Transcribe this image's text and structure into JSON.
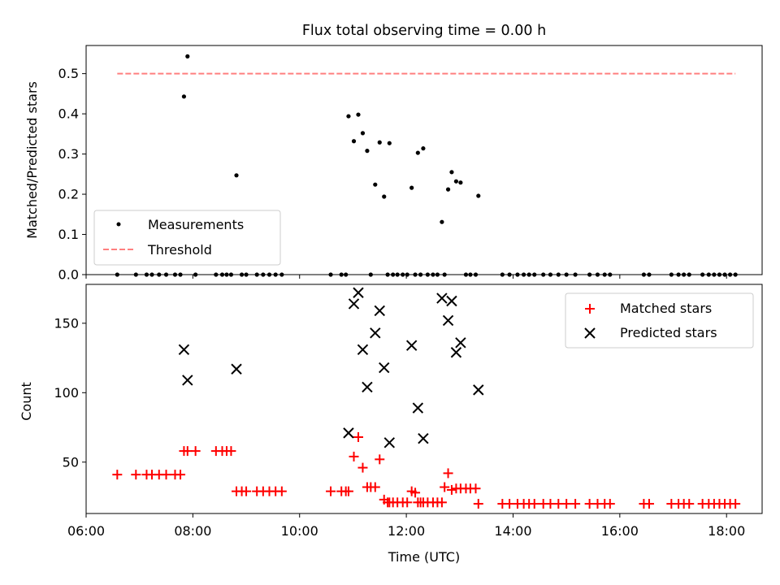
{
  "chart_data": [
    {
      "type": "scatter",
      "title": "Flux total observing time = 0.00 h",
      "xlabel": "",
      "ylabel": "Matched/Predicted stars",
      "xlim": [
        "06:00",
        "18:40"
      ],
      "ylim": [
        0,
        0.57
      ],
      "yticks": [
        "0.0",
        "0.1",
        "0.2",
        "0.3",
        "0.4",
        "0.5"
      ],
      "x_tick_labels_shown": false,
      "legend_position": "bottom-left",
      "series": [
        {
          "name": "Measurements",
          "marker": "dot",
          "color": "#000000",
          "points": [
            [
              "06:35",
              0
            ],
            [
              "06:56",
              0
            ],
            [
              "07:08",
              0
            ],
            [
              "07:14",
              0
            ],
            [
              "07:22",
              0
            ],
            [
              "07:30",
              0
            ],
            [
              "07:40",
              0
            ],
            [
              "07:46",
              0
            ],
            [
              "07:50",
              0.443
            ],
            [
              "07:54",
              0.543
            ],
            [
              "08:03",
              0
            ],
            [
              "08:26",
              0
            ],
            [
              "08:33",
              0
            ],
            [
              "08:38",
              0
            ],
            [
              "08:43",
              0
            ],
            [
              "08:49",
              0.247
            ],
            [
              "08:55",
              0
            ],
            [
              "09:00",
              0
            ],
            [
              "09:12",
              0
            ],
            [
              "09:19",
              0
            ],
            [
              "09:26",
              0
            ],
            [
              "09:33",
              0
            ],
            [
              "09:40",
              0
            ],
            [
              "10:35",
              0
            ],
            [
              "10:47",
              0
            ],
            [
              "10:52",
              0
            ],
            [
              "10:55",
              0.394
            ],
            [
              "11:01",
              0.332
            ],
            [
              "11:06",
              0.398
            ],
            [
              "11:11",
              0.352
            ],
            [
              "11:16",
              0.308
            ],
            [
              "11:20",
              0
            ],
            [
              "11:25",
              0.224
            ],
            [
              "11:30",
              0.329
            ],
            [
              "11:35",
              0.194
            ],
            [
              "11:39",
              0
            ],
            [
              "11:41",
              0.327
            ],
            [
              "11:45",
              0
            ],
            [
              "11:50",
              0
            ],
            [
              "11:56",
              0
            ],
            [
              "12:01",
              0
            ],
            [
              "12:06",
              0.216
            ],
            [
              "12:10",
              0
            ],
            [
              "12:13",
              0.303
            ],
            [
              "12:16",
              0
            ],
            [
              "12:19",
              0.314
            ],
            [
              "12:24",
              0
            ],
            [
              "12:30",
              0
            ],
            [
              "12:35",
              0
            ],
            [
              "12:40",
              0.131
            ],
            [
              "12:43",
              0
            ],
            [
              "12:47",
              0.212
            ],
            [
              "12:51",
              0.255
            ],
            [
              "12:56",
              0.232
            ],
            [
              "13:01",
              0.229
            ],
            [
              "13:07",
              0
            ],
            [
              "13:12",
              0
            ],
            [
              "13:18",
              0
            ],
            [
              "13:21",
              0.196
            ],
            [
              "13:48",
              0
            ],
            [
              "13:56",
              0
            ],
            [
              "14:05",
              0
            ],
            [
              "14:12",
              0
            ],
            [
              "14:18",
              0
            ],
            [
              "14:24",
              0
            ],
            [
              "14:34",
              0
            ],
            [
              "14:42",
              0
            ],
            [
              "14:51",
              0
            ],
            [
              "15:00",
              0
            ],
            [
              "15:10",
              0
            ],
            [
              "15:26",
              0
            ],
            [
              "15:35",
              0
            ],
            [
              "15:43",
              0
            ],
            [
              "15:49",
              0
            ],
            [
              "16:27",
              0
            ],
            [
              "16:33",
              0
            ],
            [
              "16:58",
              0
            ],
            [
              "17:06",
              0
            ],
            [
              "17:12",
              0
            ],
            [
              "17:18",
              0
            ],
            [
              "17:33",
              0
            ],
            [
              "17:40",
              0
            ],
            [
              "17:46",
              0
            ],
            [
              "17:52",
              0
            ],
            [
              "17:58",
              0
            ],
            [
              "18:04",
              0
            ],
            [
              "18:10",
              0
            ]
          ]
        },
        {
          "name": "Threshold",
          "type": "line",
          "style": "dashed",
          "color": "#ff7f7f",
          "points": [
            [
              "06:35",
              0.5
            ],
            [
              "18:10",
              0.5
            ]
          ]
        }
      ]
    },
    {
      "type": "scatter",
      "title": "",
      "xlabel": "Time (UTC)",
      "ylabel": "Count",
      "xlim": [
        "06:00",
        "18:40"
      ],
      "ylim": [
        13,
        178
      ],
      "xticks": [
        "06:00",
        "08:00",
        "10:00",
        "12:00",
        "14:00",
        "16:00",
        "18:00"
      ],
      "yticks": [
        "50",
        "100",
        "150"
      ],
      "legend_position": "top-right",
      "series": [
        {
          "name": "Matched stars",
          "marker": "plus",
          "color": "#ff0000",
          "points": [
            [
              "06:35",
              41
            ],
            [
              "06:56",
              41
            ],
            [
              "07:08",
              41
            ],
            [
              "07:14",
              41
            ],
            [
              "07:22",
              41
            ],
            [
              "07:30",
              41
            ],
            [
              "07:40",
              41
            ],
            [
              "07:46",
              41
            ],
            [
              "07:50",
              58
            ],
            [
              "07:54",
              58
            ],
            [
              "08:03",
              58
            ],
            [
              "08:26",
              58
            ],
            [
              "08:33",
              58
            ],
            [
              "08:38",
              58
            ],
            [
              "08:43",
              58
            ],
            [
              "08:49",
              29
            ],
            [
              "08:55",
              29
            ],
            [
              "09:00",
              29
            ],
            [
              "09:12",
              29
            ],
            [
              "09:19",
              29
            ],
            [
              "09:26",
              29
            ],
            [
              "09:33",
              29
            ],
            [
              "09:40",
              29
            ],
            [
              "10:35",
              29
            ],
            [
              "10:47",
              29
            ],
            [
              "10:52",
              29
            ],
            [
              "10:55",
              29
            ],
            [
              "11:01",
              54
            ],
            [
              "11:06",
              68
            ],
            [
              "11:11",
              46
            ],
            [
              "11:16",
              32
            ],
            [
              "11:20",
              32
            ],
            [
              "11:25",
              32
            ],
            [
              "11:30",
              52
            ],
            [
              "11:35",
              23
            ],
            [
              "11:39",
              21
            ],
            [
              "11:41",
              21
            ],
            [
              "11:45",
              21
            ],
            [
              "11:50",
              21
            ],
            [
              "11:56",
              21
            ],
            [
              "12:01",
              21
            ],
            [
              "12:06",
              29
            ],
            [
              "12:10",
              28
            ],
            [
              "12:13",
              21
            ],
            [
              "12:16",
              21
            ],
            [
              "12:19",
              21
            ],
            [
              "12:24",
              21
            ],
            [
              "12:30",
              21
            ],
            [
              "12:35",
              21
            ],
            [
              "12:40",
              21
            ],
            [
              "12:43",
              32
            ],
            [
              "12:47",
              42
            ],
            [
              "12:51",
              30
            ],
            [
              "12:56",
              31
            ],
            [
              "13:01",
              31
            ],
            [
              "13:07",
              31
            ],
            [
              "13:12",
              31
            ],
            [
              "13:18",
              31
            ],
            [
              "13:21",
              20
            ],
            [
              "13:48",
              20
            ],
            [
              "13:56",
              20
            ],
            [
              "14:05",
              20
            ],
            [
              "14:12",
              20
            ],
            [
              "14:18",
              20
            ],
            [
              "14:24",
              20
            ],
            [
              "14:34",
              20
            ],
            [
              "14:42",
              20
            ],
            [
              "14:51",
              20
            ],
            [
              "15:00",
              20
            ],
            [
              "15:10",
              20
            ],
            [
              "15:26",
              20
            ],
            [
              "15:35",
              20
            ],
            [
              "15:43",
              20
            ],
            [
              "15:49",
              20
            ],
            [
              "16:27",
              20
            ],
            [
              "16:33",
              20
            ],
            [
              "16:58",
              20
            ],
            [
              "17:06",
              20
            ],
            [
              "17:12",
              20
            ],
            [
              "17:18",
              20
            ],
            [
              "17:33",
              20
            ],
            [
              "17:40",
              20
            ],
            [
              "17:46",
              20
            ],
            [
              "17:52",
              20
            ],
            [
              "17:58",
              20
            ],
            [
              "18:04",
              20
            ],
            [
              "18:10",
              20
            ]
          ]
        },
        {
          "name": "Predicted stars",
          "marker": "x",
          "color": "#000000",
          "points": [
            [
              "07:50",
              131
            ],
            [
              "07:54",
              109
            ],
            [
              "08:49",
              117
            ],
            [
              "10:55",
              71
            ],
            [
              "11:01",
              164
            ],
            [
              "11:06",
              172
            ],
            [
              "11:11",
              131
            ],
            [
              "11:16",
              104
            ],
            [
              "11:25",
              143
            ],
            [
              "11:30",
              159
            ],
            [
              "11:35",
              118
            ],
            [
              "11:41",
              64
            ],
            [
              "12:06",
              134
            ],
            [
              "12:13",
              89
            ],
            [
              "12:19",
              67
            ],
            [
              "12:40",
              168
            ],
            [
              "12:47",
              152
            ],
            [
              "12:51",
              166
            ],
            [
              "12:56",
              129
            ],
            [
              "13:01",
              136
            ],
            [
              "13:21",
              102
            ]
          ]
        }
      ]
    }
  ]
}
